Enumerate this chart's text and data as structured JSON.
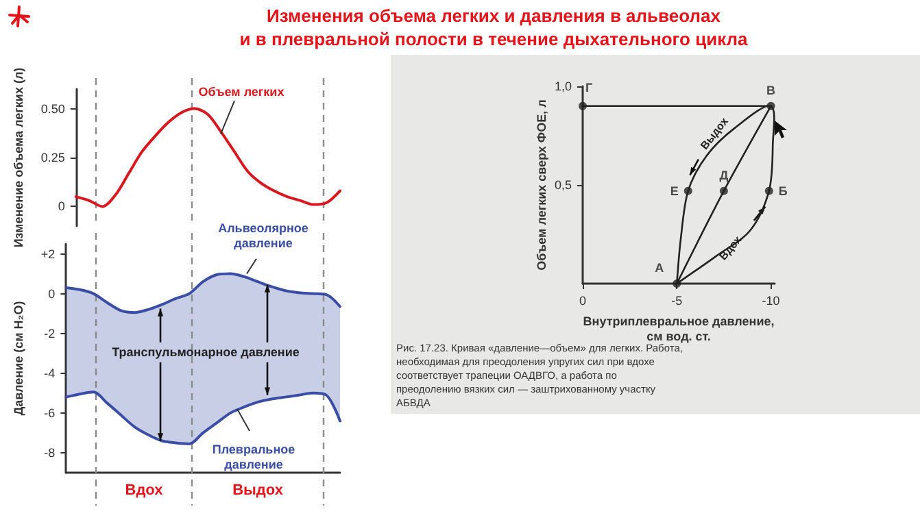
{
  "chart_data": [
    {
      "type": "line",
      "title": "Изменения объема легких и давления в альвеолах\nи в плевральной полости в течение дыхательного цикла",
      "ylabel": "Изменение объема легких (л)",
      "categories": [
        null,
        null,
        null,
        null,
        null,
        null,
        null,
        null,
        null,
        null,
        null,
        null,
        null,
        null,
        null,
        null,
        null,
        null,
        null,
        null,
        null
      ],
      "series": [
        {
          "name": "Объем легких",
          "color": "#d7191f",
          "values": [
            0.05,
            0.03,
            0.0,
            0.06,
            0.17,
            0.28,
            0.36,
            0.43,
            0.48,
            0.5,
            0.47,
            0.38,
            0.28,
            0.18,
            0.12,
            0.08,
            0.05,
            0.03,
            0.01,
            0.02,
            0.08
          ]
        }
      ],
      "ylim": [
        -0.1,
        0.6
      ],
      "yticks": [
        0,
        0.25,
        {
          "value": 0.5,
          "label": "0.50"
        }
      ],
      "tick_labels": "y",
      "grid": false,
      "marker": "none"
    },
    {
      "type": "line",
      "ylabel": "Давление (см H₂O)",
      "categories": [
        null,
        null,
        null,
        null,
        null,
        null,
        null,
        null,
        null,
        null,
        null,
        null,
        null,
        null,
        null,
        null,
        null,
        null,
        null,
        null,
        null
      ],
      "series": [
        {
          "name": "Альвеолярное давление",
          "color": "#3a4ea5",
          "values": [
            0.3,
            0.2,
            0,
            -0.45,
            -0.85,
            -0.95,
            -0.8,
            -0.55,
            -0.25,
            0,
            0.6,
            0.95,
            1.0,
            0.85,
            0.6,
            0.35,
            0.15,
            0.05,
            0,
            -0.05,
            -0.65
          ],
          "lower": [
            -5.2,
            -5.05,
            -4.95,
            -5.5,
            -6.1,
            -6.7,
            -7.1,
            -7.4,
            -7.5,
            -7.55,
            -7.0,
            -6.5,
            -6.0,
            -5.7,
            -5.45,
            -5.3,
            -5.2,
            -5.1,
            -5.0,
            -5.1,
            -6.4
          ],
          "upper": [
            0.3,
            0.2,
            0,
            -0.45,
            -0.85,
            -0.95,
            -0.8,
            -0.55,
            -0.25,
            0,
            0.6,
            0.95,
            1.0,
            0.85,
            0.6,
            0.35,
            0.15,
            0.05,
            0,
            -0.05,
            -0.65
          ]
        },
        {
          "name": "Плевральное давление",
          "color": "#3a4ea5",
          "values": [
            -5.2,
            -5.05,
            -4.95,
            -5.5,
            -6.1,
            -6.7,
            -7.1,
            -7.4,
            -7.5,
            -7.55,
            -7.0,
            -6.5,
            -6.0,
            -5.7,
            -5.45,
            -5.3,
            -5.2,
            -5.1,
            -5.0,
            -5.1,
            -6.4
          ]
        }
      ],
      "ylim": [
        -9,
        2.5
      ],
      "yticks": [
        {
          "value": 2,
          "label": "+2"
        },
        0,
        -2,
        -4,
        -6,
        -8
      ],
      "tick_labels": "y",
      "grid": false,
      "marker": "none",
      "annotations": [
        "Транспульмонарное давление",
        "Вдох",
        "Выдох"
      ]
    },
    {
      "type": "line",
      "xlabel": "Внутриплевральное давление,\nсм вод. ст.",
      "ylabel": "Объем легких сверх ФОЕ, л",
      "series": [
        {
          "color": "#222222",
          "x": [
            0,
            -10
          ],
          "values": [
            0.9,
            0.9
          ]
        },
        {
          "color": "#222222",
          "x": [
            -5,
            -7.5,
            -10
          ],
          "values": [
            0,
            0.47,
            0.9
          ]
        },
        {
          "type": "scatter",
          "marker": "circle",
          "color": "#222222",
          "x": [
            -5,
            -9.9,
            -10,
            0,
            -7.5,
            -5.6
          ],
          "values": [
            0,
            0.47,
            0.9,
            0.9,
            0.47,
            0.47
          ],
          "value_labels": [
            "А",
            "Б",
            "В",
            "Г",
            "Д",
            "Е"
          ]
        }
      ],
      "xlim": [
        0,
        -10.2
      ],
      "xticks": [
        0,
        -5,
        -10
      ],
      "ylim": [
        0,
        1.0
      ],
      "yticks": [
        {
          "value": 0.5,
          "label": "0,5"
        },
        {
          "value": 1,
          "label": "1,0"
        }
      ],
      "grid": false,
      "marker": "none",
      "annotations": [
        "Выдох",
        "Вдох",
        "Рис. 17.23. Кривая «давление—объем» для легких. Работа, необходимая для преодоления упругих сил при вдохе соответствует трапеции ОАДВГО, а работа по преодолению вязких сил — заштрихованному участку АБВДА"
      ]
    }
  ]
}
